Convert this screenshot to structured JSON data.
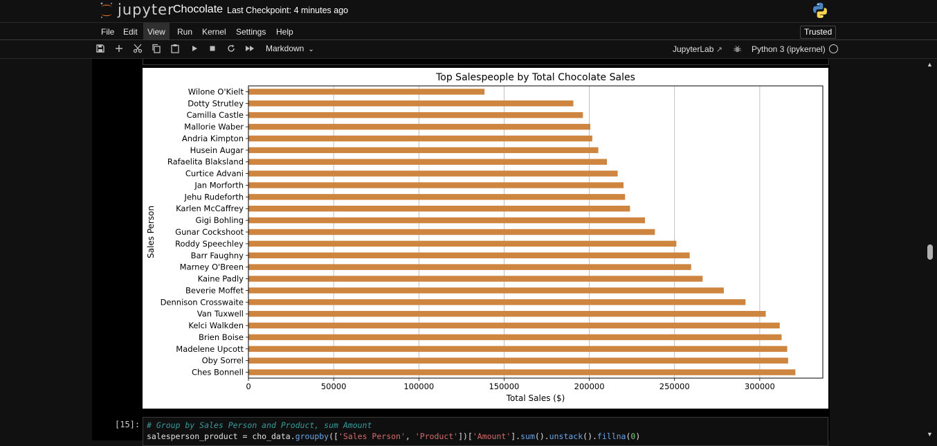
{
  "header": {
    "brand": "jupyter",
    "notebook_title": "Chocolate",
    "checkpoint": "Last Checkpoint: 4 minutes ago"
  },
  "menu": {
    "items": [
      "File",
      "Edit",
      "View",
      "Run",
      "Kernel",
      "Settings",
      "Help"
    ],
    "active": "View",
    "trusted": "Trusted"
  },
  "toolbar": {
    "cell_type": "Markdown",
    "jupyterlab": "JupyterLab",
    "kernel": "Python 3 (ipykernel)",
    "icons": [
      "save-icon",
      "add-icon",
      "cut-icon",
      "copy-icon",
      "paste-icon",
      "run-icon",
      "stop-icon",
      "restart-icon",
      "run-all-icon"
    ]
  },
  "next_cell": {
    "prompt": "[15]:",
    "comment": "# Group by Sales Person and Product, sum Amount",
    "code": [
      {
        "t": "salesperson_product = cho_data.",
        "c": ""
      },
      {
        "t": "groupby",
        "c": "fn"
      },
      {
        "t": "([",
        "c": ""
      },
      {
        "t": "'Sales Person'",
        "c": "str"
      },
      {
        "t": ", ",
        "c": ""
      },
      {
        "t": "'Product'",
        "c": "str"
      },
      {
        "t": "])[",
        "c": ""
      },
      {
        "t": "'Amount'",
        "c": "str"
      },
      {
        "t": "].",
        "c": ""
      },
      {
        "t": "sum",
        "c": "fn"
      },
      {
        "t": "().",
        "c": ""
      },
      {
        "t": "unstack",
        "c": "fn"
      },
      {
        "t": "().",
        "c": ""
      },
      {
        "t": "fillna",
        "c": "fn"
      },
      {
        "t": "(",
        "c": ""
      },
      {
        "t": "0",
        "c": "num"
      },
      {
        "t": ")",
        "c": ""
      }
    ]
  },
  "colors": {
    "bar": "#cd853f",
    "accent": "#f37626"
  },
  "chart_data": {
    "type": "bar",
    "orientation": "horizontal",
    "title": "Top Salespeople by Total Chocolate Sales",
    "xlabel": "Total Sales ($)",
    "ylabel": "Sales Person",
    "xlim": [
      0,
      337000
    ],
    "xticks": [
      0,
      50000,
      100000,
      150000,
      200000,
      250000,
      300000
    ],
    "grid": "vertical",
    "categories": [
      "Ches Bonnell",
      "Oby Sorrel",
      "Madelene Upcott",
      "Brien Boise",
      "Kelci Walkden",
      "Van Tuxwell",
      "Dennison Crosswaite",
      "Beverie Moffet",
      "Kaine Padly",
      "Marney O'Breen",
      "Barr Faughny",
      "Roddy Speechley",
      "Gunar Cockshoot",
      "Gigi Bohling",
      "Karlen McCaffrey",
      "Jehu Rudeforth",
      "Jan Morforth",
      "Curtice Advani",
      "Rafaelita Blaksland",
      "Husein Augar",
      "Andria Kimpton",
      "Mallorie Waber",
      "Camilla Castle",
      "Dotty Strutley",
      "Wilone O'Kielt"
    ],
    "values": [
      320901,
      316645,
      316099,
      312816,
      311710,
      303506,
      291669,
      278922,
      266490,
      259742,
      258900,
      251062,
      238483,
      232666,
      223895,
      220976,
      220081,
      216642,
      210336,
      205275,
      201747,
      200592,
      196245,
      190624,
      138523
    ]
  }
}
